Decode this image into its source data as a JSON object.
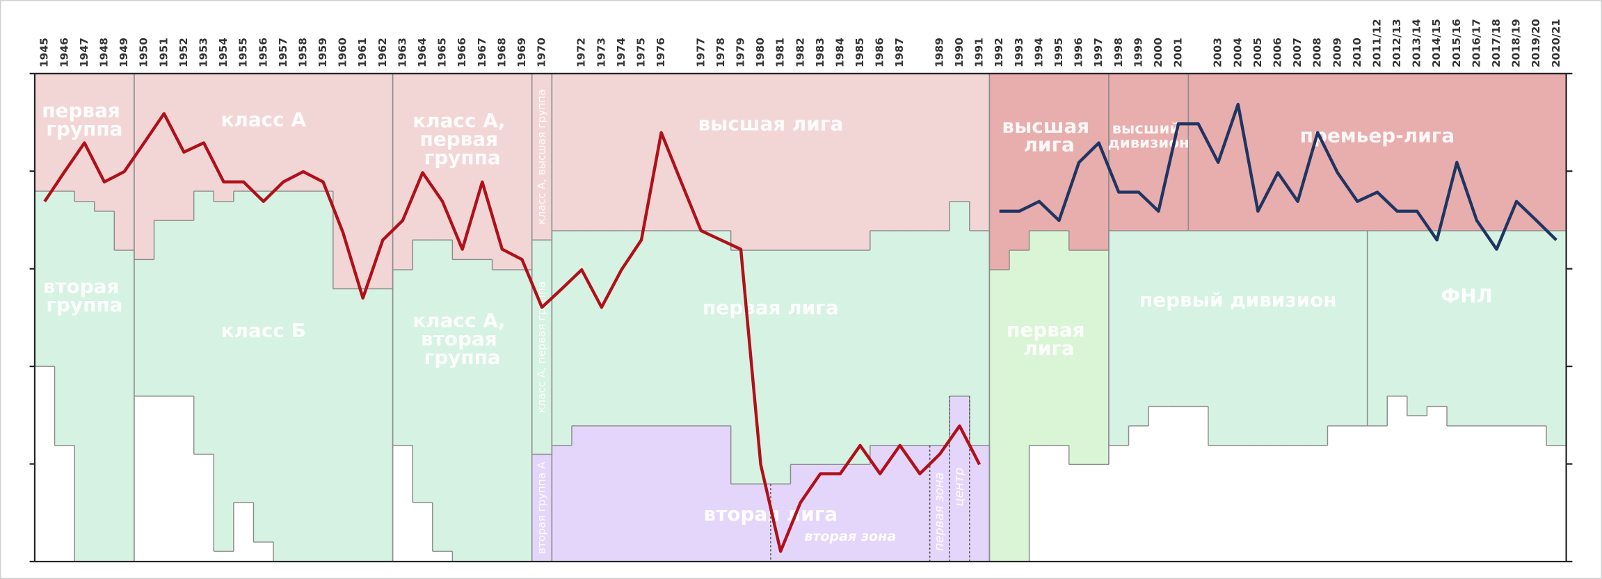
{
  "chart_data": {
    "type": "line",
    "categories": [
      "1945",
      "1946",
      "1947",
      "1948",
      "1949",
      "1950",
      "1951",
      "1952",
      "1953",
      "1954",
      "1955",
      "1956",
      "1957",
      "1958",
      "1959",
      "1960",
      "1961",
      "1962",
      "1963",
      "1964",
      "1965",
      "1966",
      "1967",
      "1968",
      "1969",
      "1970",
      null,
      "1972",
      "1973",
      "1974",
      "1975",
      "1976",
      null,
      "1977",
      "1978",
      "1979",
      "1980",
      "1981",
      "1982",
      "1983",
      "1984",
      "1985",
      "1986",
      "1987",
      null,
      "1989",
      "1990",
      "1991",
      "1992",
      "1993",
      "1994",
      "1995",
      "1996",
      "1997",
      "1998",
      "1999",
      "2000",
      "2001",
      null,
      "2003",
      "2004",
      "2005",
      "2006",
      "2007",
      "2008",
      "2009",
      "2010",
      "2011/12",
      "2012/13",
      "2013/14",
      "2014/15",
      "2015/16",
      "2016/17",
      "2017/18",
      "2018/19",
      "2019/20",
      "2020/21"
    ],
    "series": [
      {
        "color": "#b0101a",
        "values": [
          73.8,
          79.9,
          85.8,
          77.8,
          79.9,
          85.8,
          91.8,
          83.9,
          85.8,
          77.8,
          77.8,
          73.8,
          77.8,
          79.9,
          77.8,
          67.4,
          54.0,
          65.9,
          69.9,
          79.7,
          73.8,
          64.0,
          77.8,
          64.0,
          61.9,
          52.1,
          55.9,
          59.8,
          52.1,
          59.8,
          65.9,
          87.9,
          77.8,
          67.8,
          65.9,
          64.0,
          19.9,
          2.1,
          12.1,
          18.0,
          18.0,
          23.8,
          18.0,
          23.8,
          18.0,
          22.0,
          27.8,
          19.9,
          null,
          null,
          null,
          null,
          null,
          null,
          null,
          null,
          null,
          null,
          null,
          null,
          null,
          null,
          null,
          null,
          null,
          null,
          null,
          null,
          null,
          null,
          null,
          null,
          null,
          null,
          null,
          null,
          null
        ]
      },
      {
        "color": "#1f3562",
        "values": [
          null,
          null,
          null,
          null,
          null,
          null,
          null,
          null,
          null,
          null,
          null,
          null,
          null,
          null,
          null,
          null,
          null,
          null,
          null,
          null,
          null,
          null,
          null,
          null,
          null,
          null,
          null,
          null,
          null,
          null,
          null,
          null,
          null,
          null,
          null,
          null,
          null,
          null,
          null,
          null,
          null,
          null,
          null,
          null,
          null,
          null,
          null,
          null,
          71.8,
          71.8,
          73.8,
          69.9,
          81.8,
          85.8,
          75.7,
          75.7,
          71.8,
          89.7,
          89.7,
          81.8,
          93.7,
          71.8,
          79.7,
          73.8,
          87.9,
          79.7,
          73.8,
          75.7,
          71.8,
          71.8,
          65.9,
          81.8,
          69.9,
          64.0,
          73.8,
          69.9,
          65.9
        ]
      }
    ],
    "ylim": [
      0,
      100
    ],
    "yticks": [
      0,
      20,
      40,
      60,
      80,
      100
    ],
    "tiers": [
      {
        "bottoms": [
          75.9,
          75.9,
          73.8,
          71.8,
          63.8,
          61.9,
          69.9,
          69.9,
          75.9,
          73.8,
          75.9,
          75.9,
          75.9,
          75.9,
          75.9,
          55.9,
          55.9,
          55.9,
          59.8,
          65.9,
          65.9,
          61.9,
          61.9,
          59.8,
          59.8,
          65.9,
          67.8,
          67.8,
          67.8,
          67.8,
          67.8,
          67.8,
          67.8,
          67.8,
          67.8,
          63.8,
          63.8,
          63.8,
          63.8,
          63.8,
          63.8,
          63.8,
          67.8,
          67.8,
          67.8,
          67.8,
          73.8,
          67.8,
          59.8,
          63.8,
          67.8,
          67.8,
          63.8,
          63.8,
          67.8,
          67.8,
          67.8,
          67.8,
          67.8,
          67.8,
          67.8,
          67.8,
          67.8,
          67.8,
          67.8,
          67.8,
          67.8,
          67.8,
          67.8,
          67.8,
          67.8,
          67.8,
          67.8,
          67.8,
          67.8,
          67.8,
          67.8
        ],
        "zones": [
          {
            "name": "первая группа",
            "span": [
              0,
              4
            ],
            "color": "#f2d6d6"
          },
          {
            "name": "класс А",
            "span": [
              5,
              17
            ],
            "color": "#f2d6d6"
          },
          {
            "name": "класс А, первая группа",
            "span": [
              18,
              24
            ],
            "color": "#f2d6d6"
          },
          {
            "name": "класс А, высшая группа",
            "span": [
              25,
              25
            ],
            "color": "#f2d6d6"
          },
          {
            "name": "высшая лига",
            "span": [
              26,
              47
            ],
            "color": "#f2d6d6"
          },
          {
            "name": "высшая лига",
            "span": [
              48,
              53
            ],
            "color": "#e8adad"
          },
          {
            "name": "высший дивизион",
            "span": [
              54,
              57
            ],
            "color": "#e8adad"
          },
          {
            "name": "премьер-лига",
            "span": [
              58,
              76
            ],
            "color": "#e8adad"
          }
        ]
      },
      {
        "bottoms": [
          40.0,
          23.8,
          0,
          0,
          0,
          33.9,
          33.9,
          33.9,
          22.0,
          2.1,
          12.1,
          4.0,
          0,
          0,
          0,
          0,
          0,
          0,
          23.8,
          12.1,
          2.1,
          0,
          0,
          0,
          0,
          22.0,
          23.8,
          27.8,
          27.8,
          27.8,
          27.8,
          27.8,
          27.8,
          27.8,
          27.8,
          15.9,
          15.9,
          15.9,
          19.9,
          19.9,
          19.9,
          19.9,
          23.8,
          23.8,
          23.8,
          23.8,
          33.9,
          23.8,
          0,
          0,
          23.8,
          23.8,
          19.9,
          19.9,
          23.8,
          27.8,
          31.8,
          31.8,
          31.8,
          23.8,
          23.8,
          23.8,
          23.8,
          23.8,
          23.8,
          27.8,
          27.8,
          27.8,
          33.9,
          29.9,
          31.8,
          27.8,
          27.8,
          27.8,
          27.8,
          27.8,
          23.8
        ],
        "zones": [
          {
            "name": "вторая группа",
            "span": [
              0,
              4
            ],
            "color": "#d6f2e2"
          },
          {
            "name": "класс Б",
            "span": [
              5,
              17
            ],
            "color": "#d6f2e2"
          },
          {
            "name": "класс А, вторая группа",
            "span": [
              18,
              24
            ],
            "color": "#d6f2e2"
          },
          {
            "name": "класс А, первая группа",
            "span": [
              25,
              25
            ],
            "color": "#d6f2e2"
          },
          {
            "name": "первая лига",
            "span": [
              26,
              47
            ],
            "color": "#d6f2e2"
          },
          {
            "name": "первая лига",
            "span": [
              48,
              53
            ],
            "color": "#d9f5d6"
          },
          {
            "name": "первый дивизион",
            "span": [
              54,
              66
            ],
            "color": "#d6f2e2"
          },
          {
            "name": "ФНЛ",
            "span": [
              67,
              76
            ],
            "color": "#d6f2e2"
          }
        ]
      },
      {
        "bottoms": [
          null,
          null,
          null,
          null,
          null,
          null,
          null,
          null,
          null,
          null,
          null,
          null,
          null,
          null,
          null,
          null,
          null,
          null,
          null,
          null,
          null,
          null,
          null,
          null,
          null,
          0,
          0,
          0,
          0,
          0,
          0,
          0,
          0,
          0,
          0,
          0,
          0,
          0,
          0,
          0,
          0,
          0,
          0,
          0,
          0,
          0,
          0,
          0,
          null,
          null,
          null,
          null,
          null,
          null,
          null,
          null,
          null,
          null,
          null,
          null,
          null,
          null,
          null,
          null,
          null,
          null,
          null,
          null,
          null,
          null,
          null,
          null,
          null,
          null,
          null,
          null,
          null
        ],
        "zones": [
          {
            "name": "вторая группа А",
            "span": [
              25,
              25
            ],
            "color": "#e4d6fa"
          },
          {
            "name": "вторая лига",
            "span": [
              26,
              47
            ],
            "color": "#e4d6fa"
          }
        ],
        "sub_zones": [
          {
            "name": "вторая зона",
            "span": [
              37,
              44
            ]
          },
          {
            "name": "первая зона",
            "span": [
              45,
              45
            ]
          },
          {
            "name": "центр",
            "span": [
              46,
              46
            ]
          }
        ]
      }
    ]
  }
}
